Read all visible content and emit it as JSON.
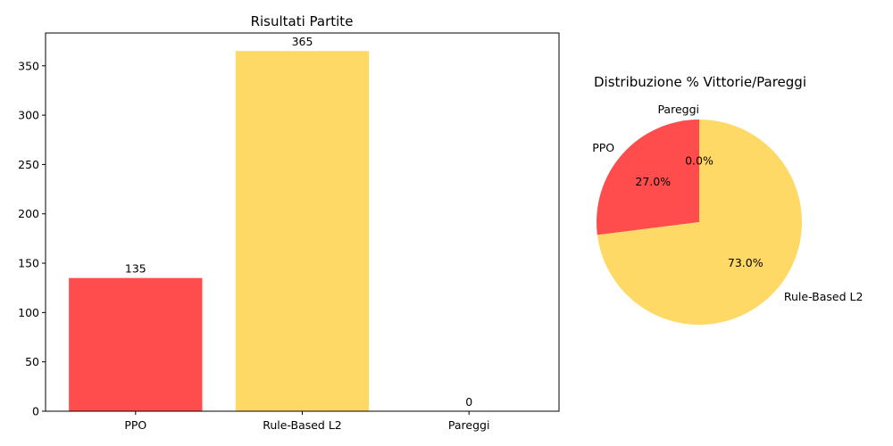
{
  "chart_data": [
    {
      "type": "bar",
      "title": "Risultati Partite",
      "categories": [
        "PPO",
        "Rule-Based L2",
        "Pareggi"
      ],
      "values": [
        135,
        365,
        0
      ],
      "data_labels": [
        "135",
        "365",
        "0"
      ],
      "colors": [
        "#ff4c4c",
        "#ffd966",
        "#d3d3d3"
      ],
      "xlabel": "",
      "ylabel": "",
      "ylim": [
        0,
        383.25
      ],
      "yticks": [
        0,
        50,
        100,
        150,
        200,
        250,
        300,
        350
      ],
      "grid": false,
      "legend": "none"
    },
    {
      "type": "pie",
      "title": "Distribuzione % Vittorie/Pareggi",
      "categories": [
        "PPO",
        "Rule-Based L2",
        "Pareggi"
      ],
      "values": [
        27.0,
        73.0,
        0.0
      ],
      "pct_labels": [
        "27.0%",
        "73.0%",
        "0.0%"
      ],
      "colors": [
        "#ff4c4c",
        "#ffd966",
        "#d3d3d3"
      ],
      "start_angle_deg": 90,
      "direction": "counterclockwise",
      "legend": "none"
    }
  ]
}
